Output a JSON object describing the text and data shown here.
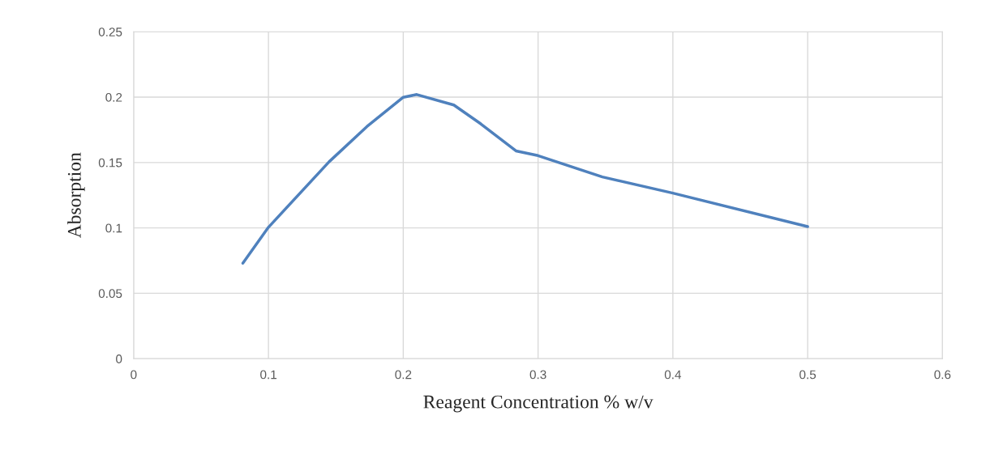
{
  "chart_data": {
    "type": "line",
    "xlabel": "Reagent Concentration % w/v",
    "ylabel": "Absorption",
    "series": [
      {
        "color": "#4f81bd",
        "x": [
          0.081,
          0.1,
          0.145,
          0.173,
          0.2,
          0.21,
          0.2375,
          0.2575,
          0.2836,
          0.3,
          0.3477,
          0.4,
          0.5
        ],
        "values": [
          0.073,
          0.1005,
          0.1506,
          0.1775,
          0.1999,
          0.202,
          0.194,
          0.1796,
          0.1589,
          0.1553,
          0.139,
          0.1266,
          0.101
        ]
      }
    ],
    "xlim": [
      0,
      0.6
    ],
    "xticks": [
      0,
      0.1,
      0.2,
      0.3,
      0.4,
      0.5,
      0.6
    ],
    "ylim": [
      0,
      0.25
    ],
    "yticks": [
      0,
      0.05,
      0.1,
      0.15,
      0.2,
      0.25
    ],
    "grid": true,
    "marker": "none",
    "line_style": "solid"
  }
}
